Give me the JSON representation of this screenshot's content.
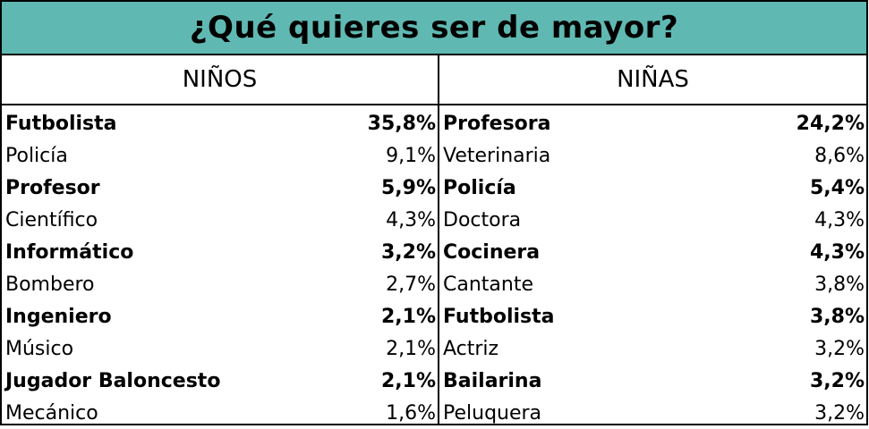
{
  "title": "¿Qué quieres ser de mayor?",
  "boys": {
    "header": "NIÑOS",
    "rows": [
      {
        "name": "Futbolista",
        "pct": "35,8%"
      },
      {
        "name": "Policía",
        "pct": "9,1%"
      },
      {
        "name": "Profesor",
        "pct": "5,9%"
      },
      {
        "name": "Científico",
        "pct": "4,3%"
      },
      {
        "name": "Informático",
        "pct": "3,2%"
      },
      {
        "name": "Bombero",
        "pct": "2,7%"
      },
      {
        "name": "Ingeniero",
        "pct": "2,1%"
      },
      {
        "name": "Músico",
        "pct": "2,1%"
      },
      {
        "name": "Jugador Baloncesto",
        "pct": "2,1%"
      },
      {
        "name": "Mecánico",
        "pct": "1,6%"
      }
    ]
  },
  "girls": {
    "header": "NIÑAS",
    "rows": [
      {
        "name": "Profesora",
        "pct": "24,2%"
      },
      {
        "name": "Veterinaria",
        "pct": "8,6%"
      },
      {
        "name": "Policía",
        "pct": "5,4%"
      },
      {
        "name": "Doctora",
        "pct": "4,3%"
      },
      {
        "name": "Cocinera",
        "pct": "4,3%"
      },
      {
        "name": "Cantante",
        "pct": "3,8%"
      },
      {
        "name": "Futbolista",
        "pct": "3,8%"
      },
      {
        "name": "Actriz",
        "pct": "3,2%"
      },
      {
        "name": "Bailarina",
        "pct": "3,2%"
      },
      {
        "name": "Peluquera",
        "pct": "3,2%"
      }
    ]
  },
  "colors": {
    "title_background": "#5fb9b2",
    "border": "#000000"
  }
}
